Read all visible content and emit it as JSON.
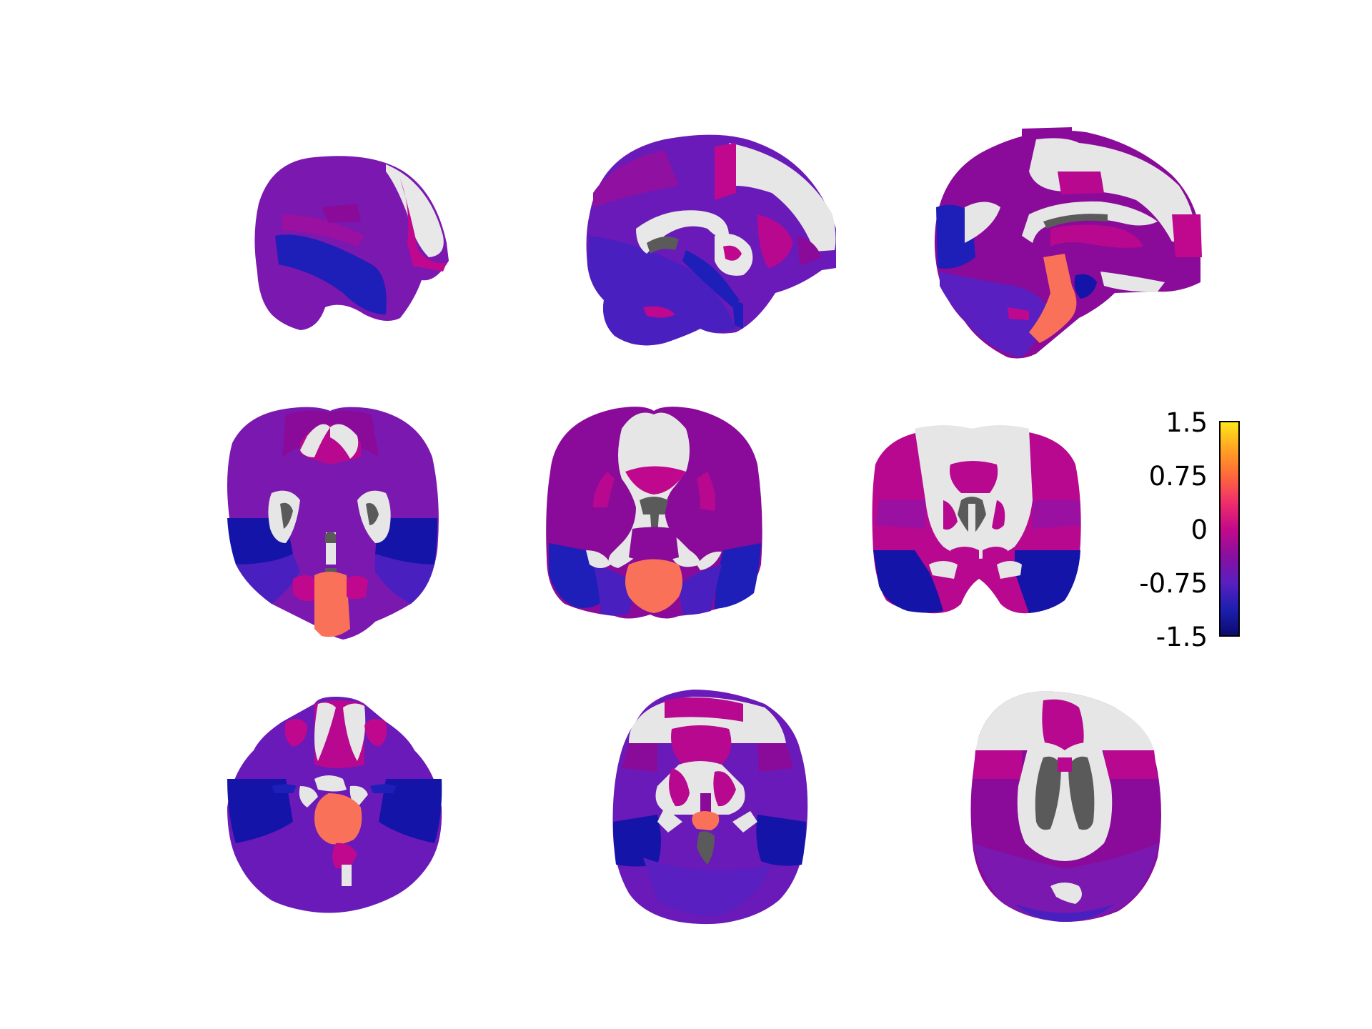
{
  "figure": {
    "rows": [
      "sagittal",
      "coronal",
      "axial"
    ],
    "panels": [
      {
        "view": "sagittal",
        "slice": "lateral"
      },
      {
        "view": "sagittal",
        "slice": "intermediate"
      },
      {
        "view": "sagittal",
        "slice": "medial"
      },
      {
        "view": "coronal",
        "slice": "posterior"
      },
      {
        "view": "coronal",
        "slice": "middle"
      },
      {
        "view": "coronal",
        "slice": "anterior"
      },
      {
        "view": "axial",
        "slice": "inferior"
      },
      {
        "view": "axial",
        "slice": "middle"
      },
      {
        "view": "axial",
        "slice": "superior"
      }
    ]
  },
  "colorbar": {
    "ticks": [
      "1.5",
      "0.75",
      "0",
      "-0.75",
      "-1.5"
    ],
    "range": [
      -1.5,
      1.5
    ],
    "colormap": "plasma-like",
    "stops": [
      "#0b0a6e",
      "#1d1fb0",
      "#5a1fc0",
      "#8a0fa0",
      "#c40a8a",
      "#f02f6a",
      "#ff6a3a",
      "#ffa522",
      "#ffe81a"
    ]
  },
  "colors": {
    "deep_blue": "#1414a8",
    "blue_violet": "#4a1fbf",
    "violet": "#7418b0",
    "purple": "#8a0b9a",
    "magenta": "#b8088f",
    "salmon": "#fa7159",
    "white_matter": "#e6e6e6",
    "ventricle": "#5a5a5a"
  }
}
